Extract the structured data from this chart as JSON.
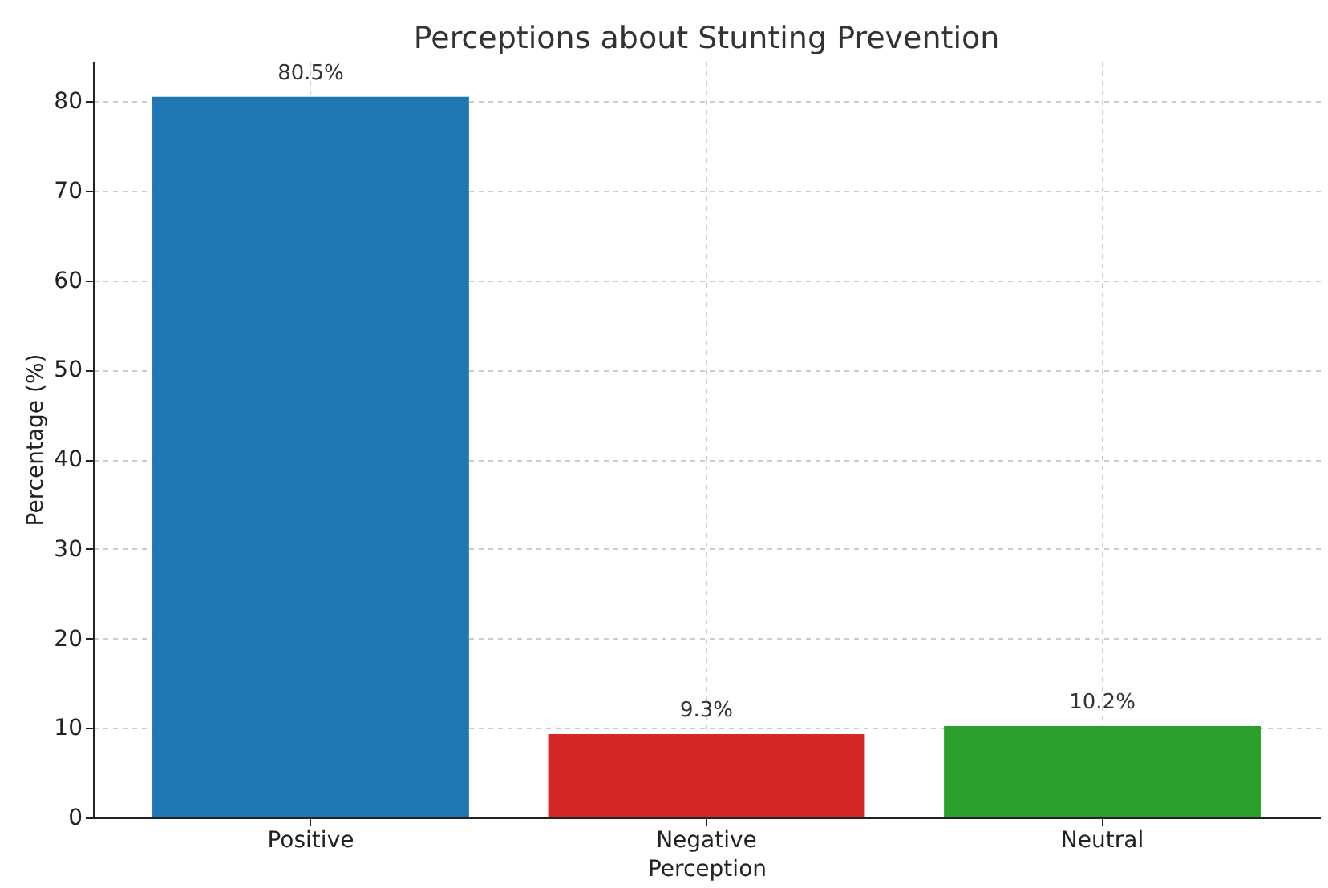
{
  "chart_data": {
    "type": "bar",
    "title": "Perceptions about Stunting Prevention",
    "xlabel": "Perception",
    "ylabel": "Percentage (%)",
    "categories": [
      "Positive",
      "Negative",
      "Neutral"
    ],
    "values": [
      80.5,
      9.3,
      10.2
    ],
    "colors": [
      "#1f77b4",
      "#d62728",
      "#2ca02c"
    ],
    "value_labels": [
      "80.5%",
      "9.3%",
      "10.2%"
    ],
    "ylim": [
      0,
      84.5
    ],
    "yticks": [
      0,
      10,
      20,
      30,
      40,
      50,
      60,
      70,
      80
    ],
    "grid": true
  }
}
